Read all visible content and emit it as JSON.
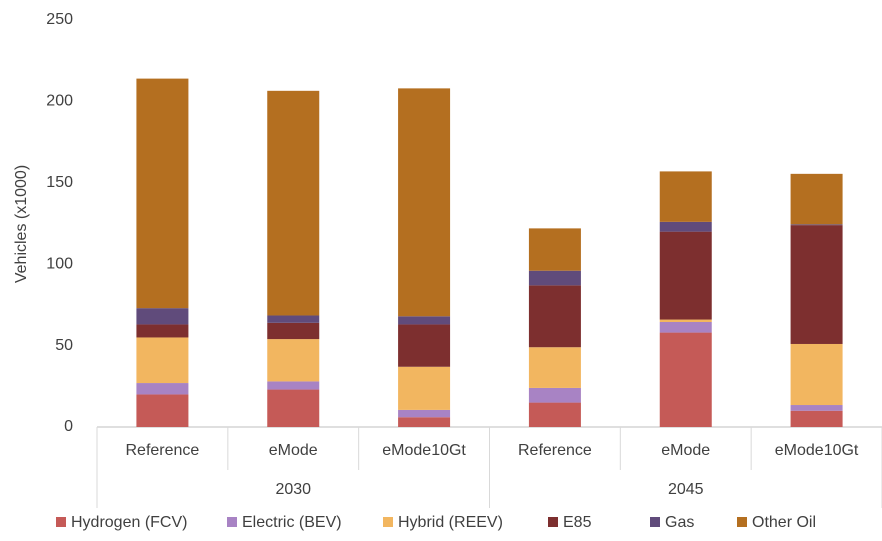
{
  "chart_data": {
    "type": "stacked_bar",
    "y_label": "Vehicles (x1000)",
    "categories": [
      "Reference",
      "eMode",
      "eMode10Gt",
      "Reference",
      "eMode",
      "eMode10Gt"
    ],
    "groups": [
      "2030",
      "2045"
    ],
    "series": [
      {
        "name": "Hydrogen (FCV)",
        "color": "#c55a57",
        "values": [
          20,
          23,
          6,
          15,
          58,
          10
        ]
      },
      {
        "name": "Electric (BEV)",
        "color": "#a883c4",
        "values": [
          7,
          5,
          4.5,
          9,
          6.5,
          3.5
        ]
      },
      {
        "name": "Hybrid (REEV)",
        "color": "#f2b660",
        "values": [
          28,
          26,
          26.5,
          25,
          1.5,
          37.5
        ]
      },
      {
        "name": "E85",
        "color": "#7d2f2f",
        "values": [
          8,
          10,
          26,
          38,
          54,
          73
        ]
      },
      {
        "name": "Gas",
        "color": "#604b7b",
        "values": [
          10,
          4.5,
          5,
          9,
          6,
          0.5
        ]
      },
      {
        "name": "Other Oil",
        "color": "#b46f20",
        "values": [
          141,
          138,
          140,
          26,
          31,
          31
        ]
      }
    ],
    "ylim": [
      0,
      250
    ],
    "yticks": [
      0,
      50,
      100,
      150,
      200,
      250
    ],
    "grid": false
  }
}
